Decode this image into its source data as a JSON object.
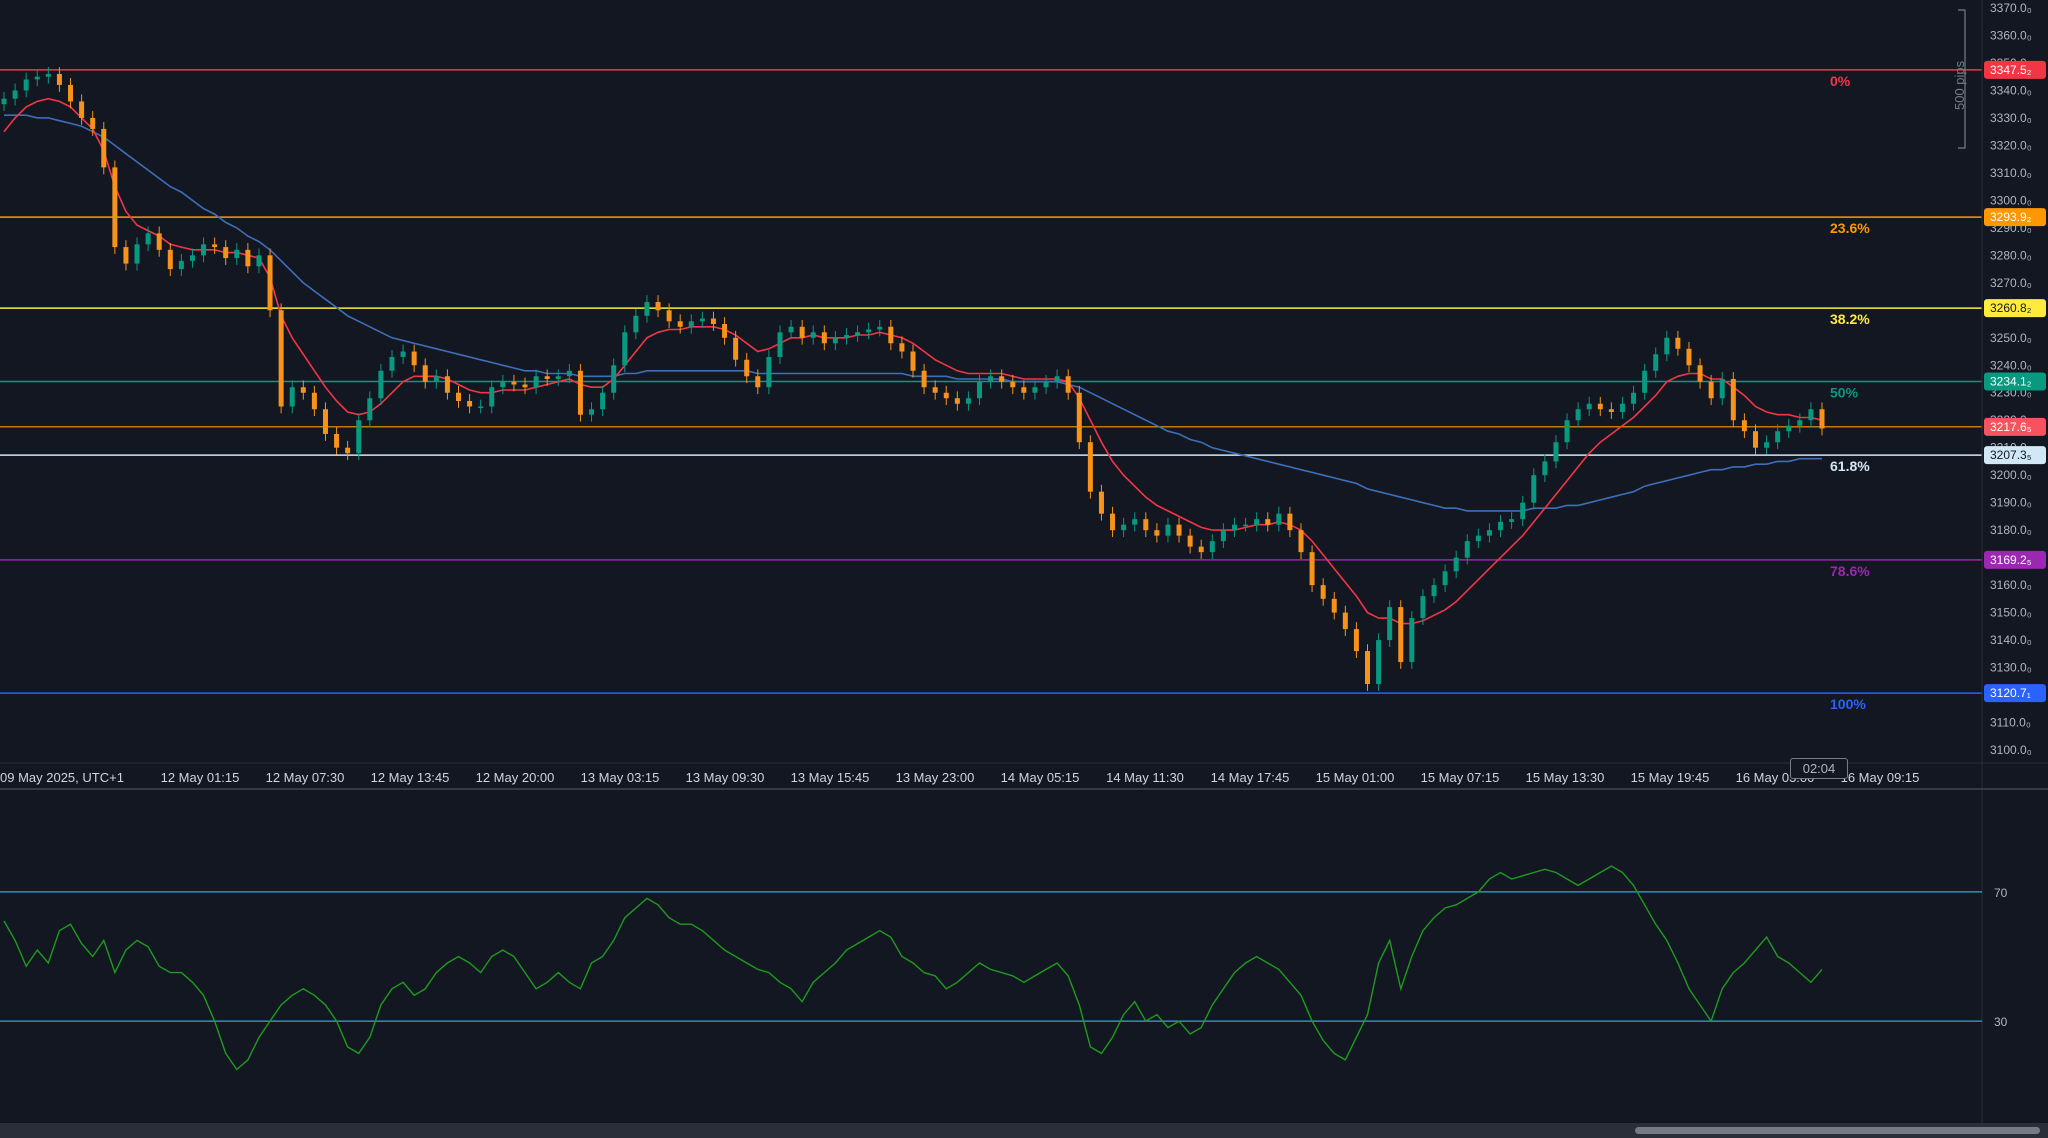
{
  "chart_data": [
    {
      "type": "line",
      "title": "",
      "symbol_timezone_label": "09 May 2025, UTC+1",
      "measure_label": "500 pips",
      "countdown": "02:04",
      "y_range": [
        3100.0,
        3370.0
      ],
      "y_ticks": [
        "3370.0₀",
        "3360.0₀",
        "3350.0₀",
        "3340.0₀",
        "3330.0₀",
        "3320.0₀",
        "3310.0₀",
        "3300.0₀",
        "3290.0₀",
        "3280.0₀",
        "3270.0₀",
        "3260.0₀",
        "3250.0₀",
        "3240.0₀",
        "3230.0₀",
        "3220.0₀",
        "3210.0₀",
        "3200.0₀",
        "3190.0₀",
        "3180.0₀",
        "3170.0₀",
        "3160.0₀",
        "3150.0₀",
        "3140.0₀",
        "3130.0₀",
        "3120.0₀",
        "3110.0₀",
        "3100.0₀"
      ],
      "y_tick_values": [
        3370,
        3360,
        3350,
        3340,
        3330,
        3320,
        3310,
        3300,
        3290,
        3280,
        3270,
        3260,
        3250,
        3240,
        3230,
        3220,
        3210,
        3200,
        3190,
        3180,
        3170,
        3160,
        3150,
        3140,
        3130,
        3120,
        3110,
        3100
      ],
      "x_labels": [
        "12 May 01:15",
        "12 May 07:30",
        "12 May 13:45",
        "12 May 20:00",
        "13 May 03:15",
        "13 May 09:30",
        "13 May 15:45",
        "13 May 23:00",
        "14 May 05:15",
        "14 May 11:30",
        "14 May 17:45",
        "15 May 01:00",
        "15 May 07:15",
        "15 May 13:30",
        "15 May 19:45",
        "16 May 03:00",
        "16 May 09:15"
      ],
      "fib_levels": [
        {
          "label": "0%",
          "price": 3347.5,
          "price_label": "3347.5₂",
          "color": "#f23645"
        },
        {
          "label": "23.6%",
          "price": 3293.9,
          "price_label": "3293.9₂",
          "color": "#ff9800"
        },
        {
          "label": "38.2%",
          "price": 3260.8,
          "price_label": "3260.8₂",
          "color": "#ffeb3b"
        },
        {
          "label": "50%",
          "price": 3234.1,
          "price_label": "3234.1₂",
          "color": "#089981"
        },
        {
          "label": "61.8%",
          "price": 3207.3,
          "price_label": "3207.3₅",
          "color": "#d1e8f5"
        },
        {
          "label": "78.6%",
          "price": 3169.2,
          "price_label": "3169.2₅",
          "color": "#9c27b0"
        },
        {
          "label": "100%",
          "price": 3120.7,
          "price_label": "3120.7₁",
          "color": "#2962ff"
        }
      ],
      "current_price": {
        "price": 3217.6,
        "label": "3217.6₅",
        "color": "#f7525f"
      },
      "colors": {
        "up": "#089981",
        "down": "#f7931a",
        "ma_fast": "#f23645",
        "ma_slow": "#3d6fb8",
        "background": "#131722"
      },
      "close_series": [
        3337,
        3340,
        3344,
        3345,
        3346,
        3342,
        3336,
        3330,
        3326,
        3312,
        3283,
        3277,
        3284,
        3288,
        3282,
        3275,
        3278,
        3280,
        3284,
        3283,
        3279,
        3282,
        3276,
        3280,
        3260,
        3225,
        3232,
        3230,
        3224,
        3215,
        3210,
        3208,
        3220,
        3228,
        3238,
        3243,
        3245,
        3240,
        3234,
        3236,
        3230,
        3227,
        3225,
        3225,
        3232,
        3234,
        3233,
        3232,
        3236,
        3235,
        3236,
        3238,
        3222,
        3224,
        3230,
        3240,
        3252,
        3258,
        3263,
        3260,
        3256,
        3254,
        3256,
        3257,
        3255,
        3250,
        3242,
        3236,
        3232,
        3243,
        3252,
        3254,
        3250,
        3252,
        3248,
        3250,
        3251,
        3252,
        3253,
        3254,
        3248,
        3245,
        3238,
        3232,
        3230,
        3228,
        3226,
        3228,
        3234,
        3236,
        3234,
        3232,
        3230,
        3232,
        3234,
        3236,
        3230,
        3212,
        3194,
        3186,
        3180,
        3182,
        3184,
        3180,
        3178,
        3182,
        3178,
        3174,
        3172,
        3176,
        3180,
        3182,
        3182,
        3184,
        3182,
        3186,
        3180,
        3172,
        3160,
        3155,
        3150,
        3144,
        3136,
        3124,
        3140,
        3152,
        3132,
        3148,
        3156,
        3160,
        3165,
        3170,
        3176,
        3178,
        3180,
        3183,
        3184,
        3190,
        3200,
        3205,
        3212,
        3220,
        3224,
        3226,
        3224,
        3223,
        3226,
        3230,
        3238,
        3244,
        3250,
        3246,
        3240,
        3234,
        3228,
        3235,
        3220,
        3216,
        3210,
        3212,
        3216,
        3218,
        3220,
        3224,
        3217
      ],
      "ma_fast_series": [
        3325,
        3330,
        3334,
        3336,
        3337,
        3336,
        3334,
        3330,
        3326,
        3318,
        3305,
        3296,
        3291,
        3289,
        3287,
        3284,
        3283,
        3282,
        3282,
        3282,
        3281,
        3281,
        3280,
        3279,
        3272,
        3258,
        3250,
        3244,
        3238,
        3232,
        3227,
        3223,
        3222,
        3223,
        3226,
        3230,
        3234,
        3236,
        3236,
        3236,
        3235,
        3233,
        3231,
        3230,
        3230,
        3231,
        3231,
        3231,
        3232,
        3233,
        3234,
        3235,
        3233,
        3232,
        3232,
        3235,
        3240,
        3245,
        3250,
        3252,
        3253,
        3253,
        3254,
        3254,
        3254,
        3253,
        3251,
        3248,
        3245,
        3246,
        3248,
        3250,
        3250,
        3251,
        3250,
        3250,
        3250,
        3251,
        3251,
        3252,
        3251,
        3250,
        3248,
        3245,
        3242,
        3240,
        3238,
        3237,
        3237,
        3237,
        3237,
        3236,
        3235,
        3235,
        3235,
        3235,
        3234,
        3228,
        3220,
        3212,
        3205,
        3200,
        3196,
        3192,
        3189,
        3187,
        3185,
        3183,
        3181,
        3180,
        3180,
        3180,
        3181,
        3182,
        3182,
        3183,
        3182,
        3180,
        3176,
        3171,
        3166,
        3161,
        3156,
        3150,
        3148,
        3148,
        3146,
        3146,
        3147,
        3149,
        3151,
        3154,
        3158,
        3162,
        3166,
        3170,
        3174,
        3178,
        3183,
        3188,
        3193,
        3198,
        3203,
        3208,
        3212,
        3215,
        3218,
        3221,
        3225,
        3229,
        3234,
        3236,
        3237,
        3237,
        3235,
        3235,
        3232,
        3229,
        3225,
        3223,
        3222,
        3222,
        3221,
        3221,
        3220
      ],
      "ma_slow_series": [
        3331,
        3331,
        3331,
        3330,
        3330,
        3329,
        3328,
        3327,
        3325,
        3323,
        3320,
        3317,
        3314,
        3311,
        3308,
        3305,
        3303,
        3300,
        3297,
        3295,
        3292,
        3290,
        3287,
        3285,
        3282,
        3278,
        3274,
        3270,
        3267,
        3264,
        3261,
        3258,
        3256,
        3254,
        3252,
        3250,
        3249,
        3248,
        3247,
        3246,
        3245,
        3244,
        3243,
        3242,
        3241,
        3240,
        3239,
        3238,
        3238,
        3237,
        3237,
        3237,
        3236,
        3236,
        3236,
        3236,
        3237,
        3237,
        3238,
        3238,
        3238,
        3238,
        3238,
        3238,
        3238,
        3238,
        3238,
        3238,
        3237,
        3237,
        3237,
        3237,
        3237,
        3237,
        3237,
        3237,
        3237,
        3237,
        3237,
        3237,
        3237,
        3237,
        3236,
        3236,
        3236,
        3236,
        3235,
        3235,
        3235,
        3235,
        3235,
        3234,
        3234,
        3234,
        3234,
        3234,
        3233,
        3232,
        3230,
        3228,
        3226,
        3224,
        3222,
        3220,
        3218,
        3216,
        3215,
        3213,
        3212,
        3210,
        3209,
        3208,
        3207,
        3206,
        3205,
        3204,
        3203,
        3202,
        3201,
        3200,
        3199,
        3198,
        3197,
        3195,
        3194,
        3193,
        3192,
        3191,
        3190,
        3189,
        3188,
        3188,
        3187,
        3187,
        3187,
        3187,
        3187,
        3187,
        3188,
        3188,
        3188,
        3189,
        3189,
        3190,
        3191,
        3192,
        3193,
        3194,
        3196,
        3197,
        3198,
        3199,
        3200,
        3201,
        3202,
        3202,
        3203,
        3203,
        3204,
        3204,
        3205,
        3205,
        3206,
        3206,
        3206
      ]
    },
    {
      "type": "line",
      "title": "",
      "y_range": [
        0,
        100
      ],
      "levels": [
        70,
        30
      ],
      "level_labels": [
        "70",
        "30"
      ],
      "color": "#1e9b1e",
      "values": [
        61,
        55,
        47,
        52,
        48,
        58,
        60,
        54,
        50,
        55,
        45,
        52,
        55,
        53,
        47,
        45,
        45,
        42,
        38,
        30,
        20,
        15,
        18,
        25,
        30,
        35,
        38,
        40,
        38,
        35,
        30,
        22,
        20,
        25,
        35,
        40,
        42,
        38,
        40,
        45,
        48,
        50,
        48,
        45,
        50,
        52,
        50,
        45,
        40,
        42,
        45,
        42,
        40,
        48,
        50,
        55,
        62,
        65,
        68,
        66,
        62,
        60,
        60,
        58,
        55,
        52,
        50,
        48,
        46,
        45,
        42,
        40,
        36,
        42,
        45,
        48,
        52,
        54,
        56,
        58,
        56,
        50,
        48,
        45,
        44,
        40,
        42,
        45,
        48,
        46,
        45,
        44,
        42,
        44,
        46,
        48,
        44,
        35,
        22,
        20,
        25,
        32,
        36,
        30,
        32,
        28,
        30,
        26,
        28,
        35,
        40,
        45,
        48,
        50,
        48,
        46,
        42,
        38,
        30,
        24,
        20,
        18,
        25,
        32,
        48,
        55,
        40,
        50,
        58,
        62,
        65,
        66,
        68,
        70,
        74,
        76,
        74,
        75,
        76,
        77,
        76,
        74,
        72,
        74,
        76,
        78,
        76,
        72,
        66,
        60,
        55,
        48,
        40,
        35,
        30,
        40,
        45,
        48,
        52,
        56,
        50,
        48,
        45,
        42,
        46
      ]
    }
  ]
}
